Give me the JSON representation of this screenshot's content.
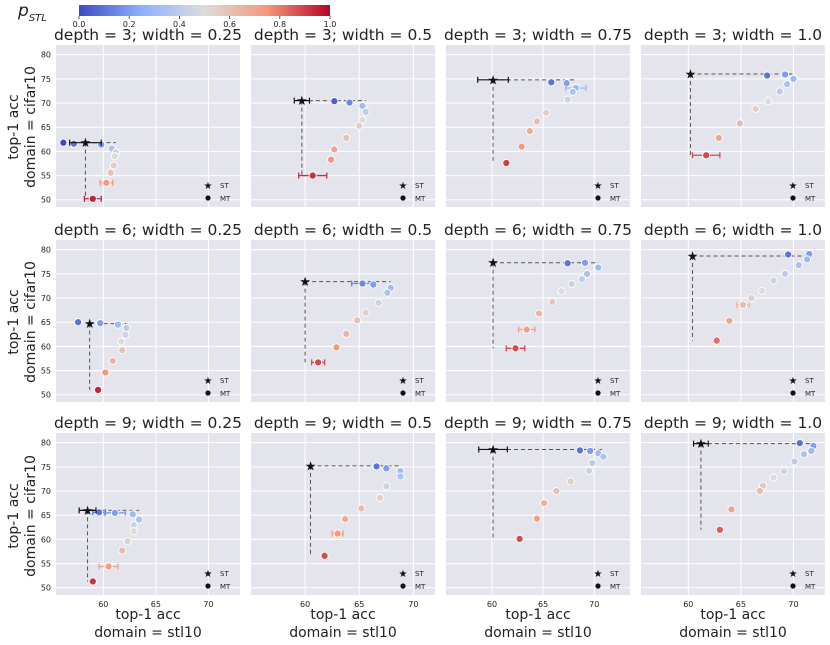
{
  "figure": {
    "colorbar": {
      "label_main": "p",
      "label_sub": "STL",
      "ticks": [
        "0.0",
        "0.2",
        "0.4",
        "0.6",
        "0.8",
        "1.0"
      ],
      "colors": [
        "#3b4cc0",
        "#8db0fe",
        "#dddcdc",
        "#f4987a",
        "#b40426"
      ]
    },
    "row_axis_label_line1": "top-1 acc",
    "row_axis_label_line2": "domain = cifar10",
    "col_axis_label_line1": "top-1 acc",
    "col_axis_label_line2": "domain = stl10",
    "legend": {
      "st": "ST",
      "mt": "MT"
    },
    "colors": {
      "panel_bg": "#e4e4ec",
      "grid": "#ffffff",
      "guide": "#555555"
    }
  },
  "chart_data": {
    "type": "scatter",
    "x_ticks": [
      60,
      65,
      70
    ],
    "x_tick_labels": [
      "60",
      "65",
      "70"
    ],
    "y_ticks": [
      50,
      55,
      60,
      65,
      70,
      75,
      80
    ],
    "y_tick_labels": [
      "50",
      "55",
      "60",
      "65",
      "70",
      "75",
      "80"
    ],
    "columns": [
      {
        "xlim": [
          55.5,
          73
        ]
      },
      {
        "xlim": [
          55,
          72
        ]
      },
      {
        "xlim": [
          55.5,
          73.5
        ]
      },
      {
        "xlim": [
          55.5,
          73
        ]
      }
    ],
    "rows": [
      {
        "ylim": [
          48.5,
          82
        ]
      },
      {
        "ylim": [
          48.5,
          82
        ]
      },
      {
        "ylim": [
          48.5,
          82
        ]
      }
    ],
    "panels": [
      {
        "title": "depth = 3; width = 0.25",
        "show_x_ticks": false,
        "st": {
          "x": 58.3,
          "y": 61.8,
          "xerr": 1.5
        },
        "mt": [
          [
            56.2,
            61.8,
            0.0
          ],
          [
            57.2,
            61.6,
            0.1
          ],
          [
            59.8,
            61.4,
            0.2
          ],
          [
            60.8,
            60.6,
            0.35
          ],
          [
            61.2,
            59.8,
            0.45
          ],
          [
            61.1,
            59.0,
            0.5
          ],
          [
            61.0,
            57.1,
            0.55
          ],
          [
            60.7,
            55.6,
            0.6
          ],
          [
            60.3,
            53.5,
            0.75,
            0.6
          ],
          [
            59.0,
            50.2,
            0.95,
            0.8
          ]
        ]
      },
      {
        "title": "depth = 3; width = 0.5",
        "show_x_ticks": false,
        "st": {
          "x": 59.7,
          "y": 70.5,
          "xerr": 0.7
        },
        "mt": [
          [
            62.7,
            70.4,
            0.05
          ],
          [
            64.1,
            70.1,
            0.15
          ],
          [
            65.3,
            69.4,
            0.3
          ],
          [
            65.6,
            68.2,
            0.4
          ],
          [
            65.3,
            66.5,
            0.5
          ],
          [
            65.0,
            65.3,
            0.55
          ],
          [
            63.8,
            62.8,
            0.6
          ],
          [
            62.7,
            60.4,
            0.7
          ],
          [
            62.4,
            58.3,
            0.75
          ],
          [
            60.7,
            55.0,
            0.92,
            1.3
          ]
        ]
      },
      {
        "title": "depth = 3; width = 0.75",
        "show_x_ticks": false,
        "st": {
          "x": 60.1,
          "y": 74.8,
          "xerr": 1.5
        },
        "mt": [
          [
            65.8,
            74.3,
            0.1
          ],
          [
            67.3,
            74.1,
            0.2
          ],
          [
            68.2,
            73.1,
            0.3,
            1.0
          ],
          [
            67.9,
            72.3,
            0.35
          ],
          [
            67.4,
            70.7,
            0.45
          ],
          [
            65.3,
            68.0,
            0.55
          ],
          [
            64.4,
            66.2,
            0.62
          ],
          [
            63.7,
            64.2,
            0.68
          ],
          [
            62.9,
            61.0,
            0.75
          ],
          [
            61.4,
            57.6,
            0.9
          ]
        ]
      },
      {
        "title": "depth = 3; width = 1.0",
        "show_x_ticks": false,
        "st": {
          "x": 60.2,
          "y": 76.0,
          "xerr": 0
        },
        "mt": [
          [
            67.5,
            75.7,
            0.1
          ],
          [
            69.2,
            75.9,
            0.2
          ],
          [
            70.0,
            75.0,
            0.3
          ],
          [
            69.4,
            73.9,
            0.35
          ],
          [
            68.7,
            72.4,
            0.4
          ],
          [
            67.6,
            70.4,
            0.5
          ],
          [
            66.4,
            68.8,
            0.55
          ],
          [
            64.9,
            65.8,
            0.62
          ],
          [
            62.9,
            62.8,
            0.7
          ],
          [
            61.7,
            59.2,
            0.88,
            1.3
          ]
        ]
      },
      {
        "title": "depth = 6; width = 0.25",
        "show_x_ticks": false,
        "st": {
          "x": 58.7,
          "y": 64.7,
          "xerr": 0
        },
        "mt": [
          [
            57.6,
            65.0,
            0.1
          ],
          [
            59.7,
            64.8,
            0.2
          ],
          [
            61.4,
            64.5,
            0.3
          ],
          [
            62.2,
            63.8,
            0.4
          ],
          [
            62.1,
            62.4,
            0.45
          ],
          [
            61.7,
            61.0,
            0.5
          ],
          [
            61.8,
            59.2,
            0.6
          ],
          [
            60.9,
            57.0,
            0.65
          ],
          [
            60.2,
            54.6,
            0.75
          ],
          [
            59.5,
            51.0,
            0.95
          ]
        ]
      },
      {
        "title": "depth = 6; width = 0.5",
        "show_x_ticks": false,
        "st": {
          "x": 60.0,
          "y": 73.4,
          "xerr": 0
        },
        "mt": [
          [
            65.3,
            73.0,
            0.15,
            1.0
          ],
          [
            66.3,
            72.8,
            0.2
          ],
          [
            67.9,
            72.1,
            0.3
          ],
          [
            67.6,
            71.1,
            0.35
          ],
          [
            66.8,
            69.0,
            0.45
          ],
          [
            65.6,
            67.0,
            0.55
          ],
          [
            64.8,
            65.4,
            0.6
          ],
          [
            63.8,
            62.6,
            0.65
          ],
          [
            62.9,
            59.8,
            0.75
          ],
          [
            61.2,
            56.7,
            0.88,
            0.6
          ]
        ]
      },
      {
        "title": "depth = 6; width = 0.75",
        "show_x_ticks": false,
        "st": {
          "x": 60.1,
          "y": 77.3,
          "xerr": 0
        },
        "mt": [
          [
            67.4,
            77.2,
            0.1
          ],
          [
            69.1,
            77.3,
            0.2
          ],
          [
            70.4,
            76.3,
            0.3
          ],
          [
            69.3,
            75.0,
            0.35
          ],
          [
            68.8,
            73.9,
            0.4
          ],
          [
            67.8,
            72.9,
            0.45
          ],
          [
            66.8,
            71.4,
            0.5
          ],
          [
            65.9,
            69.2,
            0.58
          ],
          [
            64.6,
            66.8,
            0.65
          ],
          [
            63.4,
            63.5,
            0.72,
            0.8
          ],
          [
            62.3,
            59.6,
            0.88,
            0.9
          ]
        ]
      },
      {
        "title": "depth = 6; width = 1.0",
        "show_x_ticks": false,
        "st": {
          "x": 60.4,
          "y": 78.7,
          "xerr": 0
        },
        "mt": [
          [
            69.5,
            79.0,
            0.1
          ],
          [
            71.5,
            79.1,
            0.2
          ],
          [
            71.3,
            78.0,
            0.3
          ],
          [
            70.5,
            76.8,
            0.35
          ],
          [
            69.2,
            75.0,
            0.4
          ],
          [
            68.1,
            73.6,
            0.45
          ],
          [
            67.0,
            71.5,
            0.5
          ],
          [
            66.0,
            70.0,
            0.55
          ],
          [
            65.2,
            68.6,
            0.62,
            0.6
          ],
          [
            63.9,
            65.3,
            0.7
          ],
          [
            62.7,
            61.2,
            0.82
          ]
        ]
      },
      {
        "title": "depth = 9; width = 0.25",
        "show_x_ticks": true,
        "st": {
          "x": 58.5,
          "y": 66.0,
          "xerr": 0.8
        },
        "mt": [
          [
            59.6,
            65.6,
            0.1,
            0.6
          ],
          [
            61.1,
            65.5,
            0.2,
            1.0
          ],
          [
            62.8,
            65.2,
            0.3
          ],
          [
            63.4,
            64.1,
            0.35
          ],
          [
            62.9,
            63.0,
            0.45
          ],
          [
            62.9,
            61.7,
            0.5
          ],
          [
            62.3,
            59.6,
            0.55
          ],
          [
            61.8,
            57.7,
            0.62
          ],
          [
            60.5,
            54.4,
            0.72,
            0.9
          ],
          [
            59.0,
            51.3,
            0.92
          ]
        ]
      },
      {
        "title": "depth = 9; width = 0.5",
        "show_x_ticks": true,
        "st": {
          "x": 60.5,
          "y": 75.2,
          "xerr": 0
        },
        "mt": [
          [
            66.6,
            75.1,
            0.1
          ],
          [
            67.5,
            74.7,
            0.2
          ],
          [
            68.8,
            74.1,
            0.3
          ],
          [
            68.8,
            73.0,
            0.35
          ],
          [
            67.5,
            71.0,
            0.45
          ],
          [
            66.9,
            68.6,
            0.55
          ],
          [
            65.2,
            66.4,
            0.62
          ],
          [
            63.7,
            64.2,
            0.68
          ],
          [
            63.0,
            61.2,
            0.75,
            0.5
          ],
          [
            61.8,
            56.6,
            0.88
          ]
        ]
      },
      {
        "title": "depth = 9; width = 0.75",
        "show_x_ticks": true,
        "st": {
          "x": 60.1,
          "y": 78.6,
          "xerr": 1.4
        },
        "mt": [
          [
            68.6,
            78.4,
            0.1
          ],
          [
            69.6,
            78.3,
            0.2
          ],
          [
            70.4,
            77.8,
            0.3
          ],
          [
            70.9,
            77.1,
            0.35
          ],
          [
            69.8,
            75.8,
            0.4
          ],
          [
            69.5,
            74.2,
            0.45
          ],
          [
            67.7,
            72.0,
            0.55
          ],
          [
            66.3,
            70.0,
            0.6
          ],
          [
            65.1,
            67.5,
            0.66
          ],
          [
            64.4,
            64.3,
            0.72
          ],
          [
            62.7,
            60.1,
            0.88
          ]
        ]
      },
      {
        "title": "depth = 9; width = 1.0",
        "show_x_ticks": true,
        "st": {
          "x": 61.2,
          "y": 79.8,
          "xerr": 0.7
        },
        "mt": [
          [
            70.6,
            79.9,
            0.1
          ],
          [
            71.9,
            79.3,
            0.2
          ],
          [
            71.7,
            78.3,
            0.3
          ],
          [
            71.0,
            77.6,
            0.35
          ],
          [
            70.1,
            76.1,
            0.4
          ],
          [
            69.1,
            74.1,
            0.45
          ],
          [
            68.1,
            72.8,
            0.5
          ],
          [
            67.1,
            71.1,
            0.58
          ],
          [
            66.8,
            70.0,
            0.62
          ],
          [
            64.1,
            66.2,
            0.7
          ],
          [
            63.0,
            62.0,
            0.85
          ]
        ]
      }
    ]
  }
}
